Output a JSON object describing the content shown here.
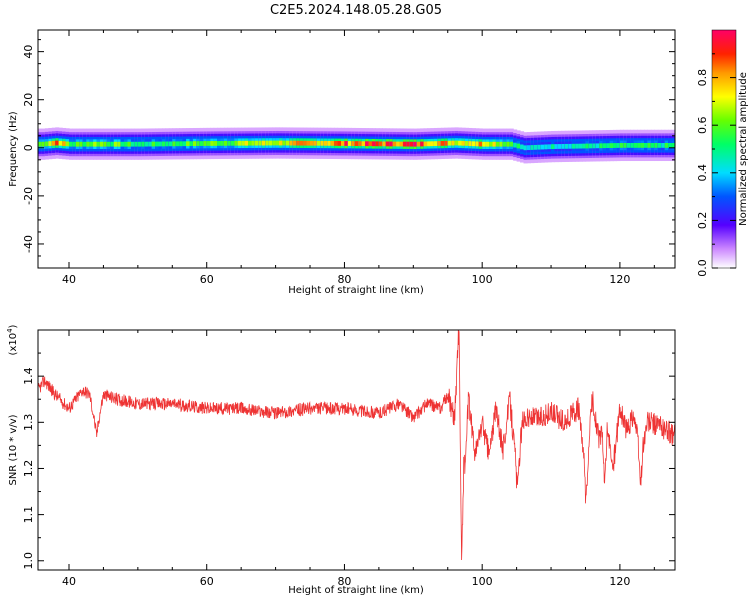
{
  "title": "C2E5.2024.148.05.28.G05",
  "chart_data": [
    {
      "type": "heatmap",
      "xlabel": "Height of straight line (km)",
      "ylabel": "Frequency (Hz)",
      "xlim": [
        35.5,
        128
      ],
      "ylim": [
        -50,
        49
      ],
      "xticks": [
        40,
        60,
        80,
        100,
        120
      ],
      "yticks": [
        -40,
        -20,
        0,
        20,
        40
      ],
      "band": {
        "description_points_x": [
          36,
          38,
          40,
          44,
          50,
          60,
          70,
          80,
          90,
          96,
          100,
          104,
          106,
          110,
          120,
          128
        ],
        "center_freq": [
          1.5,
          2,
          1.5,
          1.5,
          1.5,
          1.8,
          2,
          1.8,
          1.5,
          2,
          1.5,
          1.5,
          0,
          0.5,
          1,
          1
        ],
        "peak_amplitude": [
          0.6,
          0.9,
          0.55,
          0.65,
          0.5,
          0.6,
          0.7,
          0.85,
          0.9,
          0.75,
          0.8,
          0.6,
          0.4,
          0.45,
          0.5,
          0.5
        ]
      },
      "colorbar": {
        "label": "Normalized spectral amplitude",
        "ticks": [
          "0.0",
          "0.2",
          "0.4",
          "0.6",
          "0.8"
        ],
        "range": [
          0,
          1
        ]
      }
    },
    {
      "type": "line",
      "xlabel": "Height of straight line (km)",
      "ylabel": "SNR (10 * v/v)",
      "scale_label": "(x10",
      "scale_exp": "4",
      "scale_close": ")",
      "xlim": [
        35.5,
        128
      ],
      "ylim": [
        0.98,
        1.5
      ],
      "xticks": [
        40,
        60,
        80,
        100,
        120
      ],
      "yticks": [
        "1.0",
        "1.1",
        "1.2",
        "1.3",
        "1.4"
      ],
      "ytick_values": [
        1.0,
        1.1,
        1.2,
        1.3,
        1.4
      ],
      "color": "#ee3333",
      "series_anchors": {
        "x": [
          35.5,
          36.5,
          38,
          40,
          42,
          43,
          44,
          45,
          47,
          50,
          55,
          60,
          65,
          70,
          75,
          80,
          85,
          88,
          90,
          92,
          94,
          95,
          96,
          96.5,
          97,
          97.5,
          98,
          99,
          100,
          101,
          102,
          103,
          104,
          105,
          106,
          108,
          110,
          112,
          114,
          115,
          116,
          117,
          118,
          119,
          120,
          121,
          122,
          123,
          124,
          126,
          128
        ],
        "y": [
          1.37,
          1.39,
          1.36,
          1.33,
          1.37,
          1.36,
          1.28,
          1.36,
          1.35,
          1.34,
          1.34,
          1.33,
          1.33,
          1.32,
          1.33,
          1.33,
          1.32,
          1.34,
          1.31,
          1.34,
          1.33,
          1.36,
          1.31,
          1.45,
          1.3,
          1.2,
          1.35,
          1.23,
          1.3,
          1.23,
          1.33,
          1.24,
          1.35,
          1.2,
          1.31,
          1.31,
          1.32,
          1.3,
          1.33,
          1.18,
          1.35,
          1.26,
          1.3,
          1.2,
          1.33,
          1.28,
          1.32,
          1.22,
          1.3,
          1.29,
          1.27
        ]
      },
      "spikes": [
        {
          "x": 96.7,
          "y": 1.49
        },
        {
          "x": 97.0,
          "y": 0.98
        },
        {
          "x": 115.2,
          "y": 1.14
        },
        {
          "x": 117.8,
          "y": 1.15
        },
        {
          "x": 123.0,
          "y": 1.16
        },
        {
          "x": 105.2,
          "y": 1.16
        },
        {
          "x": 44.0,
          "y": 1.27
        }
      ]
    }
  ]
}
